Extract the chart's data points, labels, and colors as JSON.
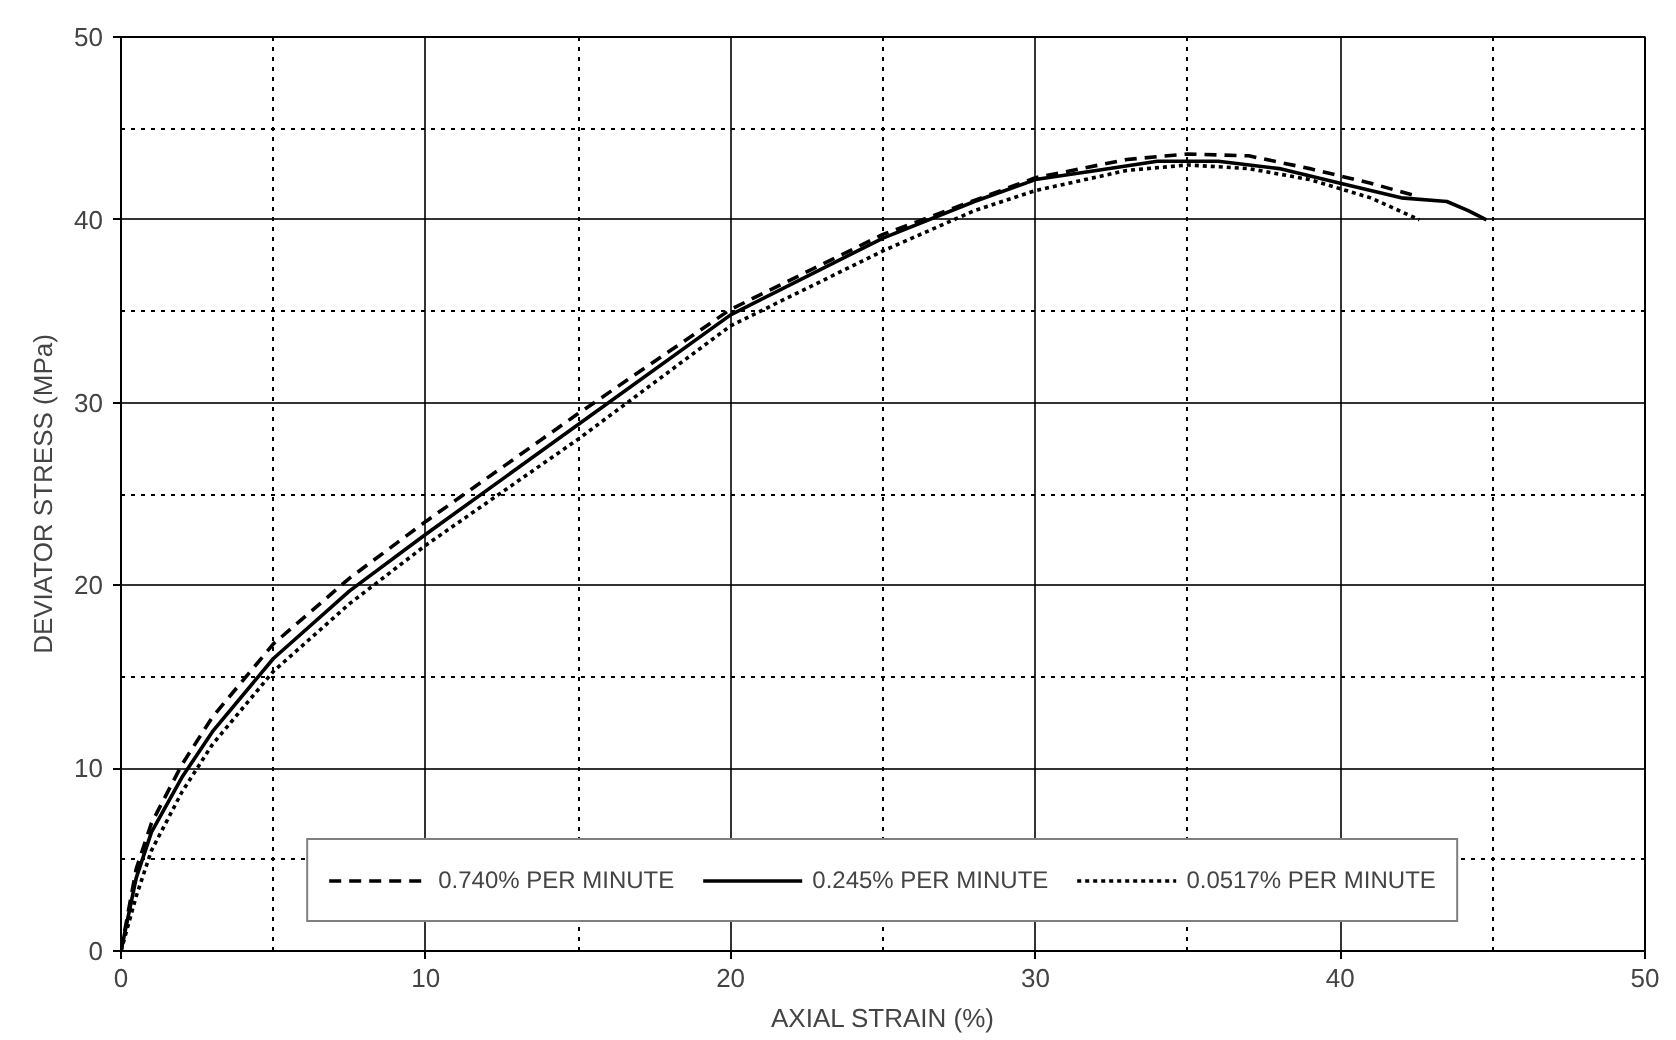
{
  "chart_data": {
    "type": "line",
    "xlabel": "AXIAL STRAIN (%)",
    "ylabel": "DEVIATOR STRESS (MPa)",
    "xlim": [
      0,
      50
    ],
    "ylim": [
      0,
      50
    ],
    "xticks": [
      0,
      10,
      20,
      30,
      40,
      50
    ],
    "yticks": [
      0,
      10,
      20,
      30,
      40,
      50
    ],
    "grid": true,
    "legend": "bottom",
    "marker": "none",
    "series": [
      {
        "name": "0.740% PER MINUTE",
        "color": "#000000",
        "line_style": "dashed",
        "x": [
          0,
          0.5,
          1,
          2,
          3,
          5,
          7.5,
          10,
          15,
          20,
          25,
          30,
          33,
          35,
          37,
          39,
          41,
          42.5
        ],
        "values": [
          0,
          4.5,
          7,
          10.2,
          12.8,
          16.8,
          20.4,
          23.5,
          29.4,
          35.1,
          39.2,
          42.3,
          43.3,
          43.6,
          43.5,
          42.8,
          42,
          41.3
        ]
      },
      {
        "name": "0.245% PER MINUTE",
        "color": "#000000",
        "line_style": "solid",
        "x": [
          0,
          0.5,
          1,
          2,
          3,
          5,
          7.5,
          10,
          15,
          20,
          25,
          28,
          30,
          32,
          34,
          36,
          38,
          40,
          42,
          43.5,
          44.2,
          44.8
        ],
        "values": [
          0,
          4,
          6.5,
          9.5,
          12,
          16,
          19.7,
          22.8,
          28.8,
          34.8,
          39,
          41,
          42.2,
          42.7,
          43.2,
          43.2,
          42.8,
          42,
          41.2,
          41,
          40.5,
          40
        ]
      },
      {
        "name": "0.0517% PER MINUTE",
        "color": "#000000",
        "line_style": "dotted",
        "x": [
          0,
          0.5,
          1,
          2,
          3,
          5,
          7.5,
          10,
          15,
          20,
          25,
          28,
          30,
          33,
          35,
          37,
          39,
          41,
          42.6
        ],
        "values": [
          0,
          3,
          5.5,
          8.7,
          11.3,
          15.3,
          19,
          22.2,
          28,
          34.2,
          38.3,
          40.5,
          41.6,
          42.7,
          43,
          42.8,
          42.2,
          41.2,
          40
        ]
      }
    ]
  }
}
